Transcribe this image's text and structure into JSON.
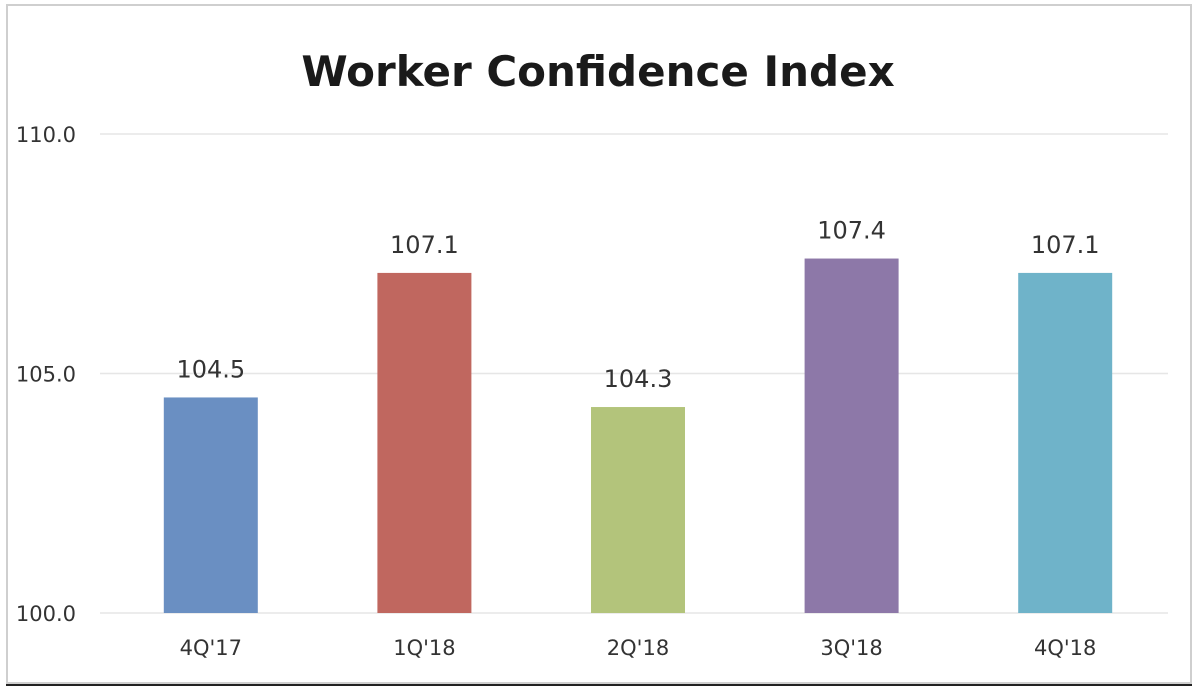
{
  "chart_data": {
    "type": "bar",
    "title": "Worker Confidence Index",
    "categories": [
      "4Q'17",
      "1Q'18",
      "2Q'18",
      "3Q'18",
      "4Q'18"
    ],
    "values": [
      104.5,
      107.1,
      104.3,
      107.4,
      107.1
    ],
    "value_labels": [
      "104.5",
      "107.1",
      "104.3",
      "107.4",
      "107.1"
    ],
    "colors": [
      "#6a8fc2",
      "#c0675f",
      "#b3c47b",
      "#8d78a8",
      "#6fb3c9"
    ],
    "ylim": [
      100,
      110
    ],
    "yticks": [
      100,
      105,
      110
    ],
    "ytick_labels": [
      "100.0",
      "105.0",
      "110.0"
    ],
    "grid": true,
    "legend": "none",
    "xlabel": "",
    "ylabel": ""
  }
}
